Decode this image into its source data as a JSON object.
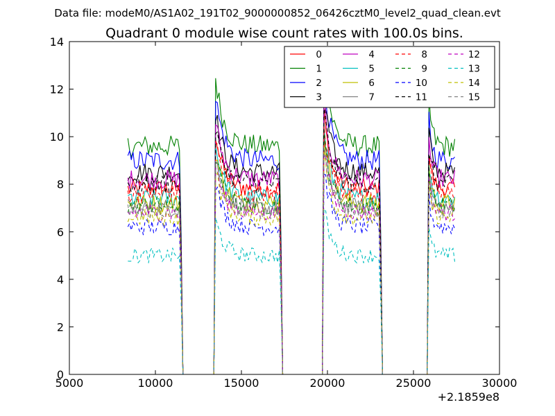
{
  "chart_data": {
    "type": "line",
    "suptitle": "Data file: modeM0/AS1A02_191T02_9000000852_06426cztM0_level2_quad_clean.evt",
    "title": "Quadrant 0 module wise count rates with 100.0s bins.",
    "xlabel": "",
    "ylabel": "",
    "x_offset_label": "+2.1859e8",
    "xlim": [
      5000,
      30000
    ],
    "ylim": [
      0,
      14
    ],
    "xticks": [
      5000,
      10000,
      15000,
      20000,
      25000,
      30000
    ],
    "xtick_labels": [
      "5000",
      "10000",
      "15000",
      "20000",
      "25000",
      "30000"
    ],
    "yticks": [
      0,
      2,
      4,
      6,
      8,
      10,
      12,
      14
    ],
    "ytick_labels": [
      "0",
      "2",
      "4",
      "6",
      "8",
      "10",
      "12",
      "14"
    ],
    "grid": false,
    "legend_position": "top-right",
    "bin_seconds": 100,
    "data_start": 8400,
    "data_end": 27400,
    "series": [
      {
        "name": "0",
        "color": "#ff0000",
        "dash": "solid",
        "level": 7.8
      },
      {
        "name": "1",
        "color": "#008000",
        "dash": "solid",
        "level": 9.6
      },
      {
        "name": "2",
        "color": "#0000ff",
        "dash": "solid",
        "level": 9.0
      },
      {
        "name": "3",
        "color": "#000000",
        "dash": "solid",
        "level": 8.5
      },
      {
        "name": "4",
        "color": "#bf00bf",
        "dash": "solid",
        "level": 8.2
      },
      {
        "name": "5",
        "color": "#00bfbf",
        "dash": "solid",
        "level": 7.4
      },
      {
        "name": "6",
        "color": "#bfbf00",
        "dash": "solid",
        "level": 7.2
      },
      {
        "name": "7",
        "color": "#808080",
        "dash": "solid",
        "level": 7.0
      },
      {
        "name": "8",
        "color": "#ff0000",
        "dash": "dashed",
        "level": 7.6
      },
      {
        "name": "9",
        "color": "#008000",
        "dash": "dashed",
        "level": 7.1
      },
      {
        "name": "10",
        "color": "#0000ff",
        "dash": "dashed",
        "level": 6.2
      },
      {
        "name": "11",
        "color": "#000000",
        "dash": "dashed",
        "level": 8.0
      },
      {
        "name": "12",
        "color": "#bf00bf",
        "dash": "dashed",
        "level": 6.8
      },
      {
        "name": "13",
        "color": "#00bfbf",
        "dash": "dashed",
        "level": 5.0
      },
      {
        "name": "14",
        "color": "#bfbf00",
        "dash": "dashed",
        "level": 6.6
      },
      {
        "name": "15",
        "color": "#808080",
        "dash": "dashed",
        "level": 6.9
      }
    ],
    "segments": [
      {
        "start": 8400,
        "end": 11500,
        "drop_to": 0,
        "peak_factor": 1.0
      },
      {
        "start": 13500,
        "end": 17300,
        "drop_to": 0,
        "peak_factor": 1.3
      },
      {
        "start": 19800,
        "end": 23100,
        "drop_to": 0,
        "peak_factor": 1.4
      },
      {
        "start": 25900,
        "end": 27400,
        "drop_to": 4,
        "peak_factor": 1.2
      }
    ]
  }
}
